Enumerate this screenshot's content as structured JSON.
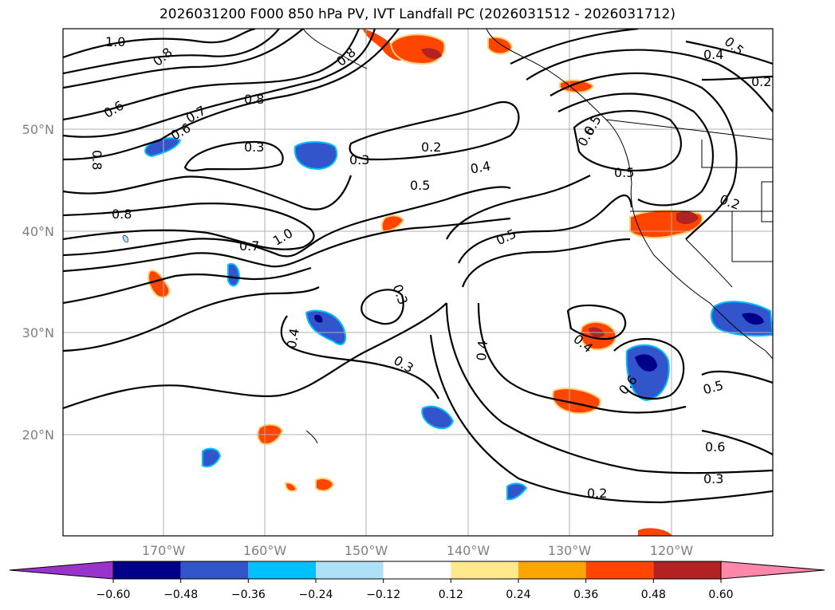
{
  "title": "2026031200 F000 850 hPa PV, IVT Landfall PC (2026031512 - 2026031712)",
  "lat_ticks": [
    "50°N",
    "40°N",
    "30°N",
    "20°N"
  ],
  "lon_ticks": [
    "170°W",
    "160°W",
    "150°W",
    "140°W",
    "130°W",
    "120°W"
  ],
  "contour_labels": [
    "1.0",
    "0.8",
    "0.8",
    "0.6",
    "0.7",
    "0.6",
    "0.8",
    "0.8",
    "0.3",
    "0.3",
    "0.2",
    "0.4",
    "0.5",
    "0.5",
    "0.8",
    "0.7",
    "1.0",
    "0.5",
    "0.3",
    "0.4",
    "0.3",
    "0.4",
    "0.4",
    "0.6",
    "0.5",
    "0.6",
    "0.3",
    "0.2",
    "0.2",
    "0.5",
    "0.4",
    "0.2",
    "0.6",
    "0.5"
  ],
  "colorbar": {
    "levels": [
      "−0.60",
      "−0.48",
      "−0.36",
      "−0.24",
      "−0.12",
      "0.12",
      "0.24",
      "0.36",
      "0.48",
      "0.60"
    ],
    "colors": [
      "#9933cc",
      "#00008b",
      "#3355cc",
      "#00bfff",
      "#aee0f7",
      "#ffffff",
      "#ffe98a",
      "#ffa500",
      "#ff4500",
      "#b22222",
      "#ff88aa"
    ]
  }
}
